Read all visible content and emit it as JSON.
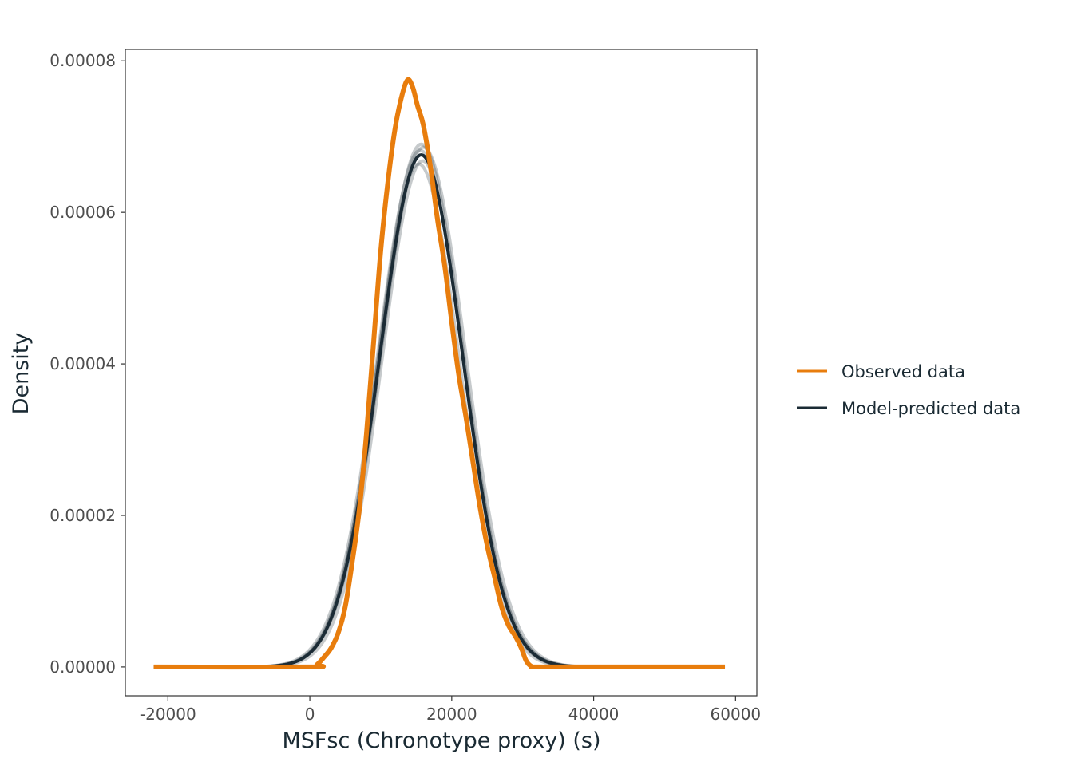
{
  "chart_data": {
    "type": "line",
    "xlabel": "MSFsc (Chronotype proxy) (s)",
    "ylabel": "Density",
    "xlim": [
      -26000,
      63000
    ],
    "ylim": [
      -3.8e-06,
      8.15e-05
    ],
    "x_ticks": [
      -20000,
      0,
      20000,
      40000,
      60000
    ],
    "x_tick_labels": [
      "-20000",
      "0",
      "20000",
      "40000",
      "60000"
    ],
    "y_ticks": [
      0,
      2e-05,
      4e-05,
      6e-05,
      8e-05
    ],
    "y_tick_labels": [
      "0.00000",
      "0.00002",
      "0.00004",
      "0.00006",
      "0.00008"
    ],
    "grid": false,
    "legend_position": "right",
    "colors": {
      "observed": "#E87D0D",
      "predicted": "#1B2B35"
    },
    "series": [
      {
        "name": "Observed data",
        "color": "#E87D0D",
        "x": [
          -22000,
          0,
          1000,
          2000,
          3000,
          4000,
          5000,
          6000,
          7000,
          8000,
          9000,
          10000,
          11000,
          12000,
          13000,
          13800,
          14500,
          15200,
          16000,
          17000,
          18000,
          19000,
          20000,
          21000,
          22000,
          23000,
          24000,
          25000,
          26000,
          27000,
          28000,
          29000,
          29800,
          30500,
          31200,
          32000,
          40000,
          58500
        ],
        "y": [
          0,
          0,
          3e-07,
          1.3e-06,
          2.5e-06,
          4.5e-06,
          8e-06,
          1.4e-05,
          2.1e-05,
          3.1e-05,
          4.3e-05,
          5.5e-05,
          6.4e-05,
          7.1e-05,
          7.55e-05,
          7.75e-05,
          7.65e-05,
          7.4e-05,
          7.15e-05,
          6.6e-05,
          5.9e-05,
          5.3e-05,
          4.55e-05,
          3.85e-05,
          3.3e-05,
          2.7e-05,
          2.1e-05,
          1.6e-05,
          1.2e-05,
          8e-06,
          5.5e-06,
          4e-06,
          2.5e-06,
          8e-07,
          1e-07,
          0,
          0,
          0
        ]
      },
      {
        "name": "Model-predicted data",
        "color": "#1B2B35",
        "mean": 15700,
        "sd": 5850,
        "peak": 6.76e-05,
        "x_range": [
          -22000,
          58500
        ]
      }
    ]
  }
}
